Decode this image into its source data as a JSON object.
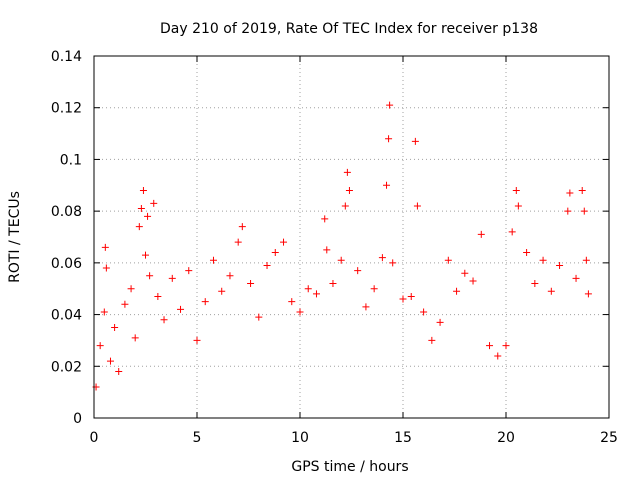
{
  "chart_data": {
    "type": "scatter",
    "title": "Day 210 of 2019, Rate Of TEC Index for receiver p138",
    "xlabel": "GPS time / hours",
    "ylabel": "ROTI / TECUs",
    "xlim": [
      0,
      25
    ],
    "ylim": [
      0,
      0.14
    ],
    "xticks": [
      0,
      5,
      10,
      15,
      20,
      25
    ],
    "yticks": [
      0,
      0.02,
      0.04,
      0.06,
      0.08,
      0.1,
      0.12,
      0.14
    ],
    "xtick_labels": [
      "0",
      "5",
      "10",
      "15",
      "20",
      "25"
    ],
    "ytick_labels": [
      "0",
      "0.02",
      "0.04",
      "0.06",
      "0.08",
      "0.1",
      "0.12",
      "0.14"
    ],
    "grid": true,
    "marker": "plus",
    "color": "#ff0000",
    "series": [
      {
        "name": "ROTI",
        "points": [
          [
            0.1,
            0.012
          ],
          [
            0.3,
            0.028
          ],
          [
            0.5,
            0.041
          ],
          [
            0.55,
            0.066
          ],
          [
            0.6,
            0.058
          ],
          [
            0.8,
            0.022
          ],
          [
            1.0,
            0.035
          ],
          [
            1.2,
            0.018
          ],
          [
            1.5,
            0.044
          ],
          [
            1.8,
            0.05
          ],
          [
            2.0,
            0.031
          ],
          [
            2.2,
            0.074
          ],
          [
            2.3,
            0.081
          ],
          [
            2.4,
            0.088
          ],
          [
            2.5,
            0.063
          ],
          [
            2.6,
            0.078
          ],
          [
            2.7,
            0.055
          ],
          [
            2.9,
            0.083
          ],
          [
            3.1,
            0.047
          ],
          [
            3.4,
            0.038
          ],
          [
            3.8,
            0.054
          ],
          [
            4.2,
            0.042
          ],
          [
            4.6,
            0.057
          ],
          [
            5.0,
            0.03
          ],
          [
            5.4,
            0.045
          ],
          [
            5.8,
            0.061
          ],
          [
            6.2,
            0.049
          ],
          [
            6.6,
            0.055
          ],
          [
            7.0,
            0.068
          ],
          [
            7.2,
            0.074
          ],
          [
            7.6,
            0.052
          ],
          [
            8.0,
            0.039
          ],
          [
            8.4,
            0.059
          ],
          [
            8.8,
            0.064
          ],
          [
            9.2,
            0.068
          ],
          [
            9.6,
            0.045
          ],
          [
            10.0,
            0.041
          ],
          [
            10.4,
            0.05
          ],
          [
            10.8,
            0.048
          ],
          [
            11.2,
            0.077
          ],
          [
            11.3,
            0.065
          ],
          [
            11.6,
            0.052
          ],
          [
            12.0,
            0.061
          ],
          [
            12.2,
            0.082
          ],
          [
            12.3,
            0.095
          ],
          [
            12.4,
            0.088
          ],
          [
            12.8,
            0.057
          ],
          [
            13.2,
            0.043
          ],
          [
            13.6,
            0.05
          ],
          [
            14.0,
            0.062
          ],
          [
            14.2,
            0.09
          ],
          [
            14.3,
            0.108
          ],
          [
            14.35,
            0.121
          ],
          [
            14.5,
            0.06
          ],
          [
            15.0,
            0.046
          ],
          [
            15.4,
            0.047
          ],
          [
            15.6,
            0.107
          ],
          [
            15.7,
            0.082
          ],
          [
            16.0,
            0.041
          ],
          [
            16.4,
            0.03
          ],
          [
            16.8,
            0.037
          ],
          [
            17.2,
            0.061
          ],
          [
            17.6,
            0.049
          ],
          [
            18.0,
            0.056
          ],
          [
            18.4,
            0.053
          ],
          [
            18.8,
            0.071
          ],
          [
            19.2,
            0.028
          ],
          [
            19.6,
            0.024
          ],
          [
            20.0,
            0.028
          ],
          [
            20.3,
            0.072
          ],
          [
            20.5,
            0.088
          ],
          [
            20.6,
            0.082
          ],
          [
            21.0,
            0.064
          ],
          [
            21.4,
            0.052
          ],
          [
            21.8,
            0.061
          ],
          [
            22.2,
            0.049
          ],
          [
            22.6,
            0.059
          ],
          [
            23.0,
            0.08
          ],
          [
            23.1,
            0.087
          ],
          [
            23.4,
            0.054
          ],
          [
            23.7,
            0.088
          ],
          [
            23.8,
            0.08
          ],
          [
            23.9,
            0.061
          ],
          [
            24.0,
            0.048
          ]
        ]
      }
    ]
  }
}
